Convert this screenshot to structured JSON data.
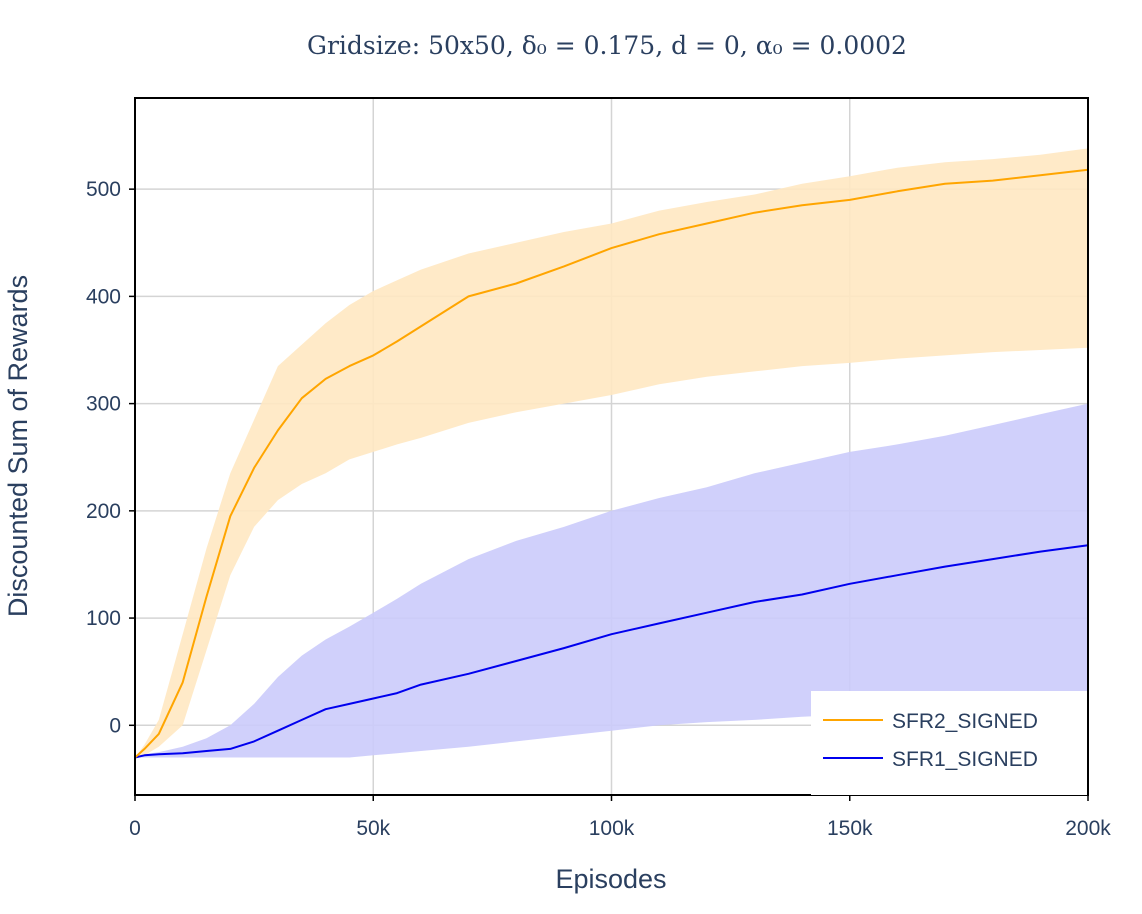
{
  "chart_data": {
    "type": "line",
    "title": "Gridsize: 50x50, δ₀ = 0.175, d = 0, α₀ = 0.0002",
    "xlabel": "Episodes",
    "ylabel": "Discounted Sum of Rewards",
    "xlim": [
      0,
      200000
    ],
    "ylim": [
      -65,
      585
    ],
    "x_ticks": [
      {
        "value": 0,
        "label": "0"
      },
      {
        "value": 50000,
        "label": "50k"
      },
      {
        "value": 100000,
        "label": "100k"
      },
      {
        "value": 150000,
        "label": "150k"
      },
      {
        "value": 200000,
        "label": "200k"
      }
    ],
    "y_ticks": [
      {
        "value": 0,
        "label": "0"
      },
      {
        "value": 100,
        "label": "100"
      },
      {
        "value": 200,
        "label": "200"
      },
      {
        "value": 300,
        "label": "300"
      },
      {
        "value": 400,
        "label": "400"
      },
      {
        "value": 500,
        "label": "500"
      }
    ],
    "grid": true,
    "legend_position": "bottom-right",
    "x": [
      0,
      2000,
      5000,
      10000,
      15000,
      20000,
      25000,
      30000,
      35000,
      40000,
      45000,
      50000,
      55000,
      60000,
      70000,
      80000,
      90000,
      100000,
      110000,
      120000,
      130000,
      140000,
      150000,
      160000,
      170000,
      180000,
      190000,
      200000
    ],
    "series": [
      {
        "name": "SFR2_SIGNED",
        "color": "#ffa500",
        "band_color": "#ffe8c2",
        "mean": [
          -30,
          -22,
          -8,
          40,
          120,
          195,
          240,
          275,
          305,
          323,
          335,
          345,
          358,
          372,
          400,
          412,
          428,
          445,
          458,
          468,
          478,
          485,
          490,
          498,
          505,
          508,
          513,
          518
        ],
        "upper": [
          -30,
          -18,
          5,
          85,
          165,
          235,
          285,
          335,
          355,
          375,
          392,
          405,
          415,
          425,
          440,
          450,
          460,
          468,
          480,
          488,
          495,
          505,
          512,
          520,
          525,
          528,
          532,
          538
        ],
        "lower": [
          -30,
          -28,
          -20,
          0,
          70,
          140,
          185,
          210,
          225,
          235,
          248,
          255,
          262,
          268,
          282,
          292,
          300,
          308,
          318,
          325,
          330,
          335,
          338,
          342,
          345,
          348,
          350,
          352
        ]
      },
      {
        "name": "SFR1_SIGNED",
        "color": "#0000ee",
        "band_color": "#cbcbfb",
        "mean": [
          -30,
          -28,
          -27,
          -26,
          -24,
          -22,
          -15,
          -5,
          5,
          15,
          20,
          25,
          30,
          38,
          48,
          60,
          72,
          85,
          95,
          105,
          115,
          122,
          132,
          140,
          148,
          155,
          162,
          168
        ],
        "upper": [
          -30,
          -27,
          -25,
          -20,
          -12,
          0,
          20,
          45,
          65,
          80,
          92,
          105,
          118,
          132,
          155,
          172,
          185,
          200,
          212,
          222,
          235,
          245,
          255,
          262,
          270,
          280,
          290,
          300
        ],
        "lower": [
          -30,
          -30,
          -30,
          -30,
          -30,
          -30,
          -30,
          -30,
          -30,
          -30,
          -30,
          -28,
          -26,
          -24,
          -20,
          -15,
          -10,
          -5,
          0,
          3,
          5,
          8,
          10,
          12,
          15,
          18,
          22,
          28
        ]
      }
    ]
  }
}
